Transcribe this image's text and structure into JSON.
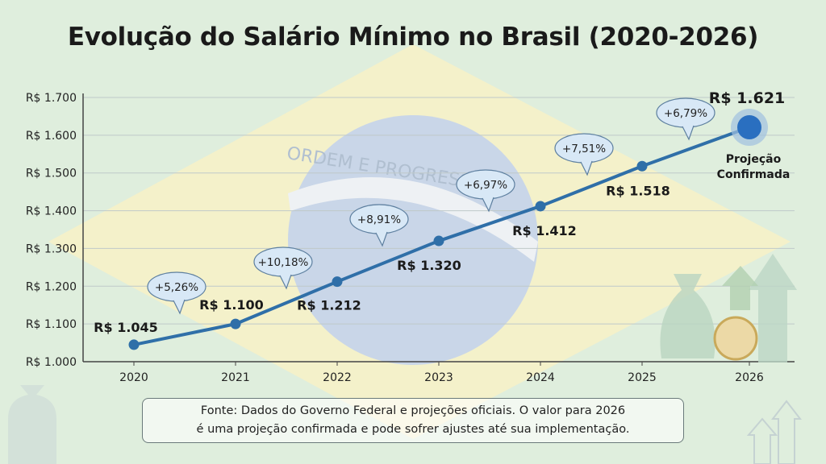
{
  "chart_data": {
    "type": "line",
    "title": "Evolução do Salário Mínimo no Brasil (2020-2026)",
    "categories": [
      "2020",
      "2021",
      "2022",
      "2023",
      "2024",
      "2025",
      "2026"
    ],
    "values": [
      1045,
      1100,
      1212,
      1320,
      1412,
      1518,
      1621
    ],
    "value_labels": [
      "R$ 1.045",
      "R$ 1.100",
      "R$ 1.212",
      "R$ 1.320",
      "R$ 1.412",
      "R$ 1.518",
      "R$ 1.621"
    ],
    "growth_labels": [
      "+5,26%",
      "+10,18%",
      "+8,91%",
      "+6,97%",
      "+7,51%",
      "+6,79%"
    ],
    "annotation": "Projeção Confirmada",
    "yticks": [
      1000,
      1100,
      1200,
      1300,
      1400,
      1500,
      1600,
      1700
    ],
    "ytick_labels": [
      "R$ 1.000",
      "R$ 1.100",
      "R$ 1.200",
      "R$ 1.300",
      "R$ 1.400",
      "R$ 1.500",
      "R$ 1.600",
      "R$ 1.700"
    ],
    "ylim": [
      1000,
      1700
    ],
    "grid": true,
    "line_color": "#2f6fa8",
    "highlight_color": "#2a6fc0"
  },
  "background": {
    "flag_text": "ORDEM E PROGRESSO"
  },
  "footer": {
    "line1": "Fonte: Dados do  Governo Federal e projeções oficiais. O valor para 2026",
    "line2": "é uma projeção confirmada e pode sofrer ajustes até sua implementação."
  }
}
